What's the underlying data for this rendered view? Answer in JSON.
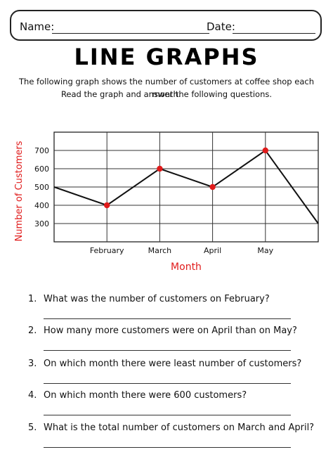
{
  "header": {
    "name_label": "Name:",
    "date_label": "Date:"
  },
  "title": "LINE GRAPHS",
  "intro": {
    "line1": "The following graph shows the number of customers at coffee shop each month.",
    "line2": "Read the graph and answer the following questions."
  },
  "chart_data": {
    "type": "line",
    "xlabel": "Month",
    "ylabel": "Number of Customers",
    "categories": [
      "",
      "February",
      "March",
      "April",
      "May",
      ""
    ],
    "values": [
      500,
      400,
      600,
      500,
      700,
      300
    ],
    "marked": [
      false,
      true,
      true,
      true,
      true,
      false
    ],
    "yticks": [
      300,
      400,
      500,
      600,
      700
    ],
    "ylim": [
      200,
      800
    ],
    "grid": true,
    "marker_color": "#e01b1b",
    "label_color": "#e01b1b"
  },
  "questions": [
    {
      "num": "1.",
      "text": "What was the number of customers on February?"
    },
    {
      "num": "2.",
      "text": "How many more customers were on April than on May?"
    },
    {
      "num": "3.",
      "text": "On which month there were least number of customers?"
    },
    {
      "num": "4.",
      "text": "On which month there were 600 customers?"
    },
    {
      "num": "5.",
      "text": "What is the total number of customers on March and April?"
    }
  ]
}
